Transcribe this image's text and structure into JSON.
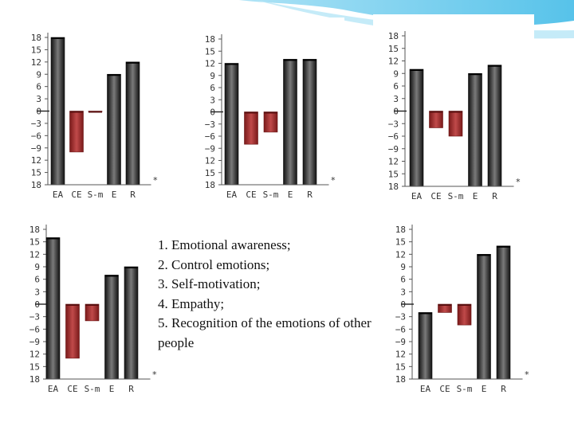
{
  "theme": {
    "accent": "#4fc3e8",
    "dark_bar": "#202020",
    "red_bar": "#a02828"
  },
  "legend": {
    "items": [
      "1. Emotional awareness;",
      "2. Control  emotions;",
      "3. Self-motivation;",
      "4. Empathy;",
      "5. Recognition of the emotions of other people"
    ]
  },
  "chart_data": [
    {
      "type": "bar",
      "categories": [
        "EA",
        "CE",
        "S-m",
        "E",
        "R"
      ],
      "values": [
        18,
        -10,
        0,
        9,
        12
      ],
      "colors": [
        "dark",
        "red",
        "red",
        "dark",
        "dark"
      ],
      "ytick_labels": [
        "18",
        "15",
        "12",
        "9",
        "6",
        "3",
        "0",
        "−3",
        "−6",
        "−9",
        "12",
        "15",
        "18"
      ],
      "ylim": [
        -18,
        18
      ],
      "marker": "*"
    },
    {
      "type": "bar",
      "categories": [
        "EA",
        "CE",
        "S-m",
        "E",
        "R"
      ],
      "values": [
        12,
        -8,
        -5,
        13,
        13
      ],
      "colors": [
        "dark",
        "red",
        "red",
        "dark",
        "dark"
      ],
      "ytick_labels": [
        "18",
        "15",
        "12",
        "9",
        "6",
        "3",
        "0",
        "−3",
        "−6",
        "−9",
        "12",
        "15",
        "18"
      ],
      "ylim": [
        -18,
        18
      ],
      "marker": "*"
    },
    {
      "type": "bar",
      "categories": [
        "EA",
        "CE",
        "S-m",
        "E",
        "R"
      ],
      "values": [
        10,
        -4,
        -6,
        9,
        11
      ],
      "colors": [
        "dark",
        "red",
        "red",
        "dark",
        "dark"
      ],
      "ytick_labels": [
        "18",
        "15",
        "12",
        "9",
        "6",
        "3",
        "0",
        "−3",
        "−6",
        "−9",
        "12",
        "15",
        "18"
      ],
      "ylim": [
        -18,
        18
      ],
      "marker": "*"
    },
    {
      "type": "bar",
      "categories": [
        "EA",
        "CE",
        "S-m",
        "E",
        "R"
      ],
      "values": [
        16,
        -13,
        -4,
        7,
        9
      ],
      "colors": [
        "dark",
        "red",
        "red",
        "dark",
        "dark"
      ],
      "ytick_labels": [
        "18",
        "15",
        "12",
        "9",
        "6",
        "3",
        "0",
        "−3",
        "−6",
        "−9",
        "12",
        "15",
        "18"
      ],
      "ylim": [
        -18,
        18
      ],
      "marker": "*"
    },
    {
      "type": "bar",
      "categories": [
        "EA",
        "CE",
        "S-m",
        "E",
        "R"
      ],
      "values": [
        -2,
        -2,
        -5,
        12,
        14
      ],
      "colors": [
        "dark",
        "red",
        "red",
        "dark",
        "dark"
      ],
      "ytick_labels": [
        "18",
        "15",
        "12",
        "9",
        "6",
        "3",
        "0",
        "−3",
        "−6",
        "−9",
        "12",
        "15",
        "18"
      ],
      "ylim": [
        -18,
        18
      ],
      "marker": "*"
    }
  ]
}
